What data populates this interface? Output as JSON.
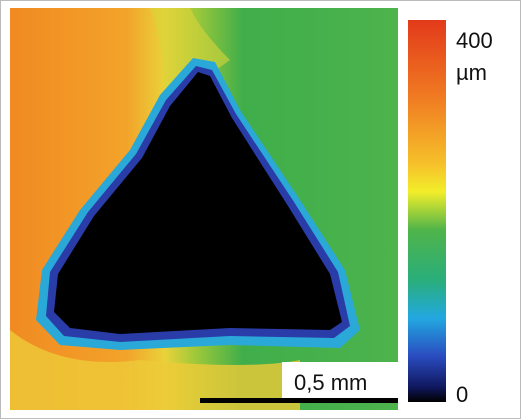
{
  "colorbar": {
    "max_label": "400",
    "unit": "µm",
    "min_label": "0"
  },
  "scale_bar": {
    "label": "0,5 mm"
  }
}
